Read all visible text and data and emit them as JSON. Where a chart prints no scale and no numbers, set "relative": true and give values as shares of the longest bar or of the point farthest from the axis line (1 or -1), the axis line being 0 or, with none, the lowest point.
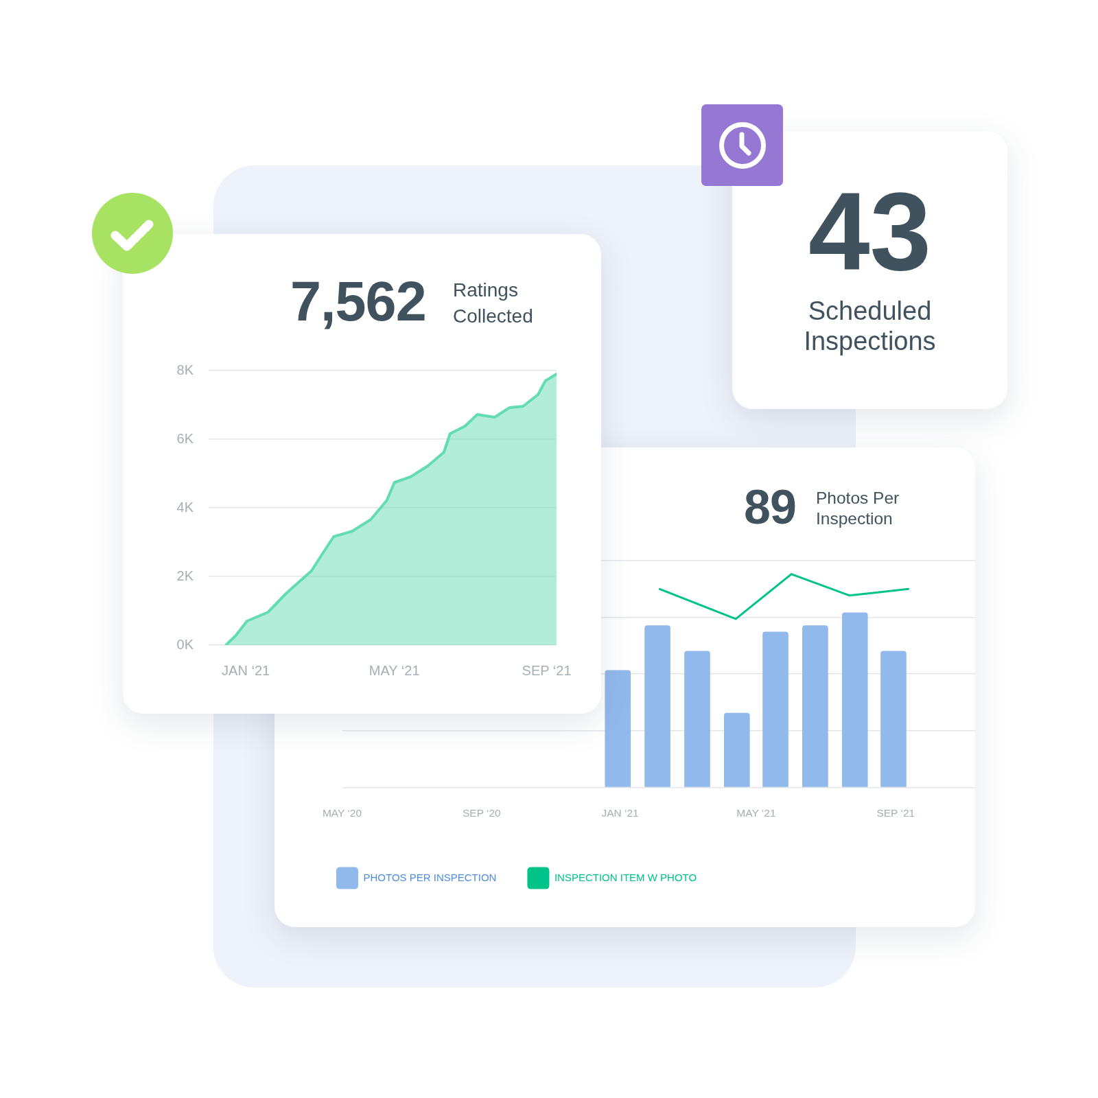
{
  "chart_data": [
    {
      "type": "area",
      "title": "7,562",
      "subtitle": "Ratings Collected",
      "x": [
        "2020-12-16",
        "2020-12-24",
        "2021-01-02",
        "2021-01-19",
        "2021-02-03",
        "2021-02-23",
        "2021-03-05",
        "2021-03-13",
        "2021-03-28",
        "2021-04-12",
        "2021-04-25",
        "2021-05-01",
        "2021-05-14",
        "2021-05-28",
        "2021-06-10",
        "2021-06-15",
        "2021-06-27",
        "2021-07-07",
        "2021-07-21",
        "2021-08-02",
        "2021-08-13",
        "2021-08-25",
        "2021-08-31",
        "2021-09-09"
      ],
      "values": [
        0,
        0.28,
        0.7,
        0.96,
        1.52,
        2.16,
        2.72,
        3.16,
        3.32,
        3.66,
        4.22,
        4.74,
        4.9,
        5.22,
        5.62,
        6.16,
        6.38,
        6.72,
        6.64,
        6.92,
        6.96,
        7.3,
        7.7,
        7.9
      ],
      "color": "#63dcb3",
      "xlim": [
        "2020-12-02",
        "2021-09-09"
      ],
      "xticks": [
        {
          "value": "2021-01",
          "label": "JAN ‘21"
        },
        {
          "value": "2021-05",
          "label": "MAY ‘21"
        },
        {
          "value": "2021-09",
          "label": "SEP ‘21"
        }
      ],
      "ylim": [
        0,
        8
      ],
      "yticks": [
        {
          "value": 0,
          "label": "0K"
        },
        {
          "value": 2,
          "label": "2K"
        },
        {
          "value": 4,
          "label": "4K"
        },
        {
          "value": 6,
          "label": "6K"
        },
        {
          "value": 8,
          "label": "8K"
        }
      ],
      "grid": "y",
      "marker": "none"
    },
    {
      "type": "other",
      "title": "43",
      "subtitle": "Scheduled Inspections"
    },
    {
      "type": "bar",
      "title": "89",
      "subtitle": "Photos Per Inspection",
      "relative": true,
      "x": [
        "2020-12-30",
        "2021-02-03",
        "2021-03-10",
        "2021-04-14",
        "2021-05-18",
        "2021-06-22",
        "2021-07-27",
        "2021-08-30"
      ],
      "xlim": [
        "2020-05",
        "2021-11-10"
      ],
      "xticks": [
        {
          "value": "2020-05",
          "label": "MAY ‘20"
        },
        {
          "value": "2020-09",
          "label": "SEP ‘20"
        },
        {
          "value": "2021-01",
          "label": "JAN ‘21"
        },
        {
          "value": "2021-05",
          "label": "MAY ‘21"
        },
        {
          "value": "2021-09",
          "label": "SEP ‘21"
        }
      ],
      "series": [
        {
          "name": "PHOTOS PER INSPECTION",
          "type": "bar",
          "color": "#92b9ec",
          "values": [
            0.55,
            0.76,
            0.64,
            0.35,
            0.73,
            0.76,
            0.82,
            0.64
          ]
        },
        {
          "name": "INSPECTION ITEM W PHOTO",
          "type": "line",
          "color": "#00c389",
          "x": [
            "2021-02-05",
            "2021-04-13",
            "2021-06-01",
            "2021-07-22",
            "2021-09-12"
          ],
          "values": [
            0.93,
            0.79,
            1,
            0.9,
            0.93
          ]
        }
      ],
      "grid": "y",
      "legend": "bottom left",
      "marker": "none"
    }
  ]
}
